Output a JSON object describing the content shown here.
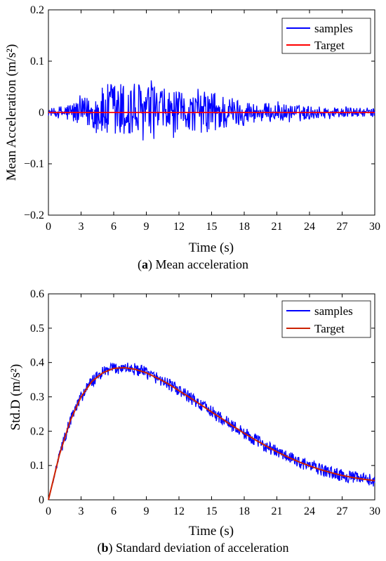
{
  "colors": {
    "samples": "#0000ff",
    "target": "#ff0000",
    "target_b": "#cc2200"
  },
  "captions": [
    {
      "letter": "a",
      "text": "Mean acceleration"
    },
    {
      "letter": "b",
      "text": "Standard deviation of acceleration"
    }
  ],
  "chart_data": [
    {
      "type": "line",
      "xlabel": "Time (s)",
      "ylabel": "Mean Acceleration (m/s²)",
      "xlim": [
        0,
        30
      ],
      "ylim": [
        -0.2,
        0.2
      ],
      "xticks": [
        0,
        3,
        6,
        9,
        12,
        15,
        18,
        21,
        24,
        27,
        30
      ],
      "xtick_labels": [
        "0",
        "3",
        "6",
        "9",
        "12",
        "15",
        "18",
        "21",
        "24",
        "27",
        "30"
      ],
      "yticks": [
        -0.2,
        -0.1,
        0,
        0.1,
        0.2
      ],
      "ytick_labels": [
        "−0.2",
        "−0.1",
        "0",
        "0.1",
        "0.2"
      ],
      "legend": "top-right",
      "grid": false,
      "series": [
        {
          "name": "samples",
          "kind": "noise",
          "x": [
            0,
            2,
            4,
            5,
            6,
            7,
            7.7,
            9,
            10,
            11,
            12,
            13,
            14,
            15,
            17,
            19,
            21,
            23,
            25,
            27,
            30
          ],
          "amplitude": [
            0.005,
            0.02,
            0.035,
            0.05,
            0.065,
            0.06,
            0.065,
            0.055,
            0.05,
            0.045,
            0.04,
            0.035,
            0.04,
            0.045,
            0.03,
            0.02,
            0.018,
            0.015,
            0.012,
            0.01,
            0.008
          ]
        },
        {
          "name": "Target",
          "x": [
            0,
            30
          ],
          "y": [
            0,
            0
          ]
        }
      ]
    },
    {
      "type": "line",
      "xlabel": "Time (s)",
      "ylabel": "Std.D (m/s²)",
      "xlim": [
        0,
        30
      ],
      "ylim": [
        0,
        0.6
      ],
      "xticks": [
        0,
        3,
        6,
        9,
        12,
        15,
        18,
        21,
        24,
        27,
        30
      ],
      "xtick_labels": [
        "0",
        "3",
        "6",
        "9",
        "12",
        "15",
        "18",
        "21",
        "24",
        "27",
        "30"
      ],
      "yticks": [
        0,
        0.1,
        0.2,
        0.3,
        0.4,
        0.5,
        0.6
      ],
      "ytick_labels": [
        "0",
        "0.1",
        "0.2",
        "0.3",
        "0.4",
        "0.5",
        "0.6"
      ],
      "legend": "top-right",
      "grid": false,
      "series": [
        {
          "name": "samples",
          "kind": "noise_around_target",
          "amplitude": 0.018
        },
        {
          "name": "Target",
          "x": [
            0,
            1,
            2,
            3,
            4,
            5,
            6,
            7,
            8,
            9,
            10,
            11,
            12,
            13,
            14,
            15,
            16,
            17,
            18,
            19,
            20,
            21,
            22,
            23,
            24,
            25,
            26,
            27,
            28,
            29,
            30
          ],
          "y": [
            0,
            0.13,
            0.23,
            0.3,
            0.345,
            0.37,
            0.383,
            0.385,
            0.38,
            0.37,
            0.355,
            0.338,
            0.318,
            0.298,
            0.277,
            0.256,
            0.235,
            0.214,
            0.194,
            0.175,
            0.157,
            0.14,
            0.125,
            0.111,
            0.099,
            0.088,
            0.079,
            0.071,
            0.065,
            0.06,
            0.056
          ]
        }
      ]
    }
  ]
}
